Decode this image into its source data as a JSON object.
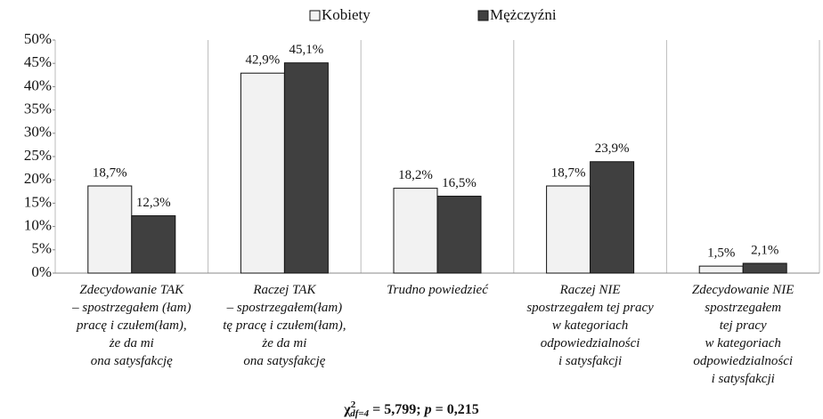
{
  "chart_data": {
    "type": "bar",
    "categories": [
      "Zdecydowanie TAK\n– spostrzegałem (łam)\npracę i czułem(łam),\nże da mi\nona satysfakcję",
      "Raczej TAK\n– spostrzegałem(łam)\ntę pracę i czułem(łam),\nże da mi\nona satysfakcję",
      "Trudno powiedzieć",
      "Raczej NIE\nspostrzegałem tej pracy\nw kategoriach\nodpowiedzialności\ni satysfakcji",
      "Zdecydowanie NIE\nspostrzegałem\ntej pracy\nw kategoriach\nodpowiedzialności\ni satysfakcji"
    ],
    "series": [
      {
        "name": "Kobiety",
        "color": "#f2f2f2",
        "values": [
          18.7,
          42.9,
          18.2,
          18.7,
          1.5
        ],
        "value_labels": [
          "18,7%",
          "42,9%",
          "18,2%",
          "18,7%",
          "1,5%"
        ]
      },
      {
        "name": "Mężczyźni",
        "color": "#404040",
        "values": [
          12.3,
          45.1,
          16.5,
          23.9,
          2.1
        ],
        "value_labels": [
          "12,3%",
          "45,1%",
          "16,5%",
          "23,9%",
          "2,1%"
        ]
      }
    ],
    "ylim": [
      0,
      50
    ],
    "yticks": [
      {
        "value": 0,
        "label": "0%"
      },
      {
        "value": 5,
        "label": "5%"
      },
      {
        "value": 10,
        "label": "10%"
      },
      {
        "value": 15,
        "label": "15%"
      },
      {
        "value": 20,
        "label": "20%"
      },
      {
        "value": 25,
        "label": "25%"
      },
      {
        "value": 30,
        "label": "30%"
      },
      {
        "value": 35,
        "label": "35%"
      },
      {
        "value": 40,
        "label": "40%"
      },
      {
        "value": 45,
        "label": "45%"
      },
      {
        "value": 50,
        "label": "50%"
      }
    ],
    "grid": false,
    "legend": "top",
    "annotation": {
      "symbol": "χ",
      "sup": "2",
      "sub": "df=4",
      "text1": " = 5,799; ",
      "p": "p",
      "text2": " = 0,215"
    }
  }
}
